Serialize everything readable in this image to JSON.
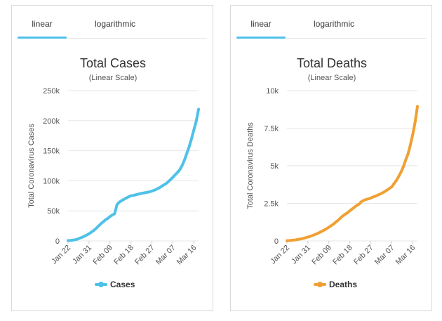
{
  "tabs": [
    {
      "label": "linear",
      "active": true
    },
    {
      "label": "logarithmic",
      "active": false
    }
  ],
  "colors": {
    "cases": "#4fc1e9",
    "deaths": "#f0a033",
    "tab_underline": "#4fc1e9"
  },
  "chart_data": [
    {
      "type": "line",
      "title": "Total Cases",
      "subtitle": "(Linear Scale)",
      "xlabel": "",
      "ylabel": "Total Coronavirus Cases",
      "ylim": [
        0,
        250000
      ],
      "yticks": [
        {
          "label": "0",
          "v": 0
        },
        {
          "label": "50k",
          "v": 50000
        },
        {
          "label": "100k",
          "v": 100000
        },
        {
          "label": "150k",
          "v": 150000
        },
        {
          "label": "200k",
          "v": 200000
        },
        {
          "label": "250k",
          "v": 250000
        }
      ],
      "xticks": [
        {
          "label": "Jan 22",
          "i": 0
        },
        {
          "label": "Jan 31",
          "i": 9
        },
        {
          "label": "Feb 09",
          "i": 18
        },
        {
          "label": "Feb 18",
          "i": 27
        },
        {
          "label": "Feb 27",
          "i": 36
        },
        {
          "label": "Mar 07",
          "i": 45
        },
        {
          "label": "Mar 16",
          "i": 54
        }
      ],
      "series": [
        {
          "name": "Cases",
          "values": [
            580,
            845,
            1320,
            2010,
            2800,
            4580,
            6060,
            7810,
            9820,
            11950,
            14550,
            17380,
            20620,
            24550,
            28280,
            31440,
            34880,
            37550,
            40550,
            43100,
            45170,
            60370,
            64450,
            67100,
            69200,
            71330,
            73330,
            75200,
            75700,
            76700,
            77700,
            78600,
            79400,
            80100,
            80800,
            81700,
            82900,
            84300,
            86000,
            88000,
            90400,
            93000,
            95300,
            98400,
            102000,
            106000,
            110000,
            114000,
            118600,
            125900,
            135000,
            146000,
            157000,
            170000,
            185000,
            199000,
            219000
          ]
        }
      ]
    },
    {
      "type": "line",
      "title": "Total Deaths",
      "subtitle": "(Linear Scale)",
      "xlabel": "",
      "ylabel": "Total Coronavirus Deaths",
      "ylim": [
        0,
        10000
      ],
      "yticks": [
        {
          "label": "0",
          "v": 0
        },
        {
          "label": "2.5k",
          "v": 2500
        },
        {
          "label": "5k",
          "v": 5000
        },
        {
          "label": "7.5k",
          "v": 7500
        },
        {
          "label": "10k",
          "v": 10000
        }
      ],
      "xticks": [
        {
          "label": "Jan 22",
          "i": 0
        },
        {
          "label": "Jan 31",
          "i": 9
        },
        {
          "label": "Feb 09",
          "i": 18
        },
        {
          "label": "Feb 18",
          "i": 27
        },
        {
          "label": "Feb 27",
          "i": 36
        },
        {
          "label": "Mar 07",
          "i": 45
        },
        {
          "label": "Mar 16",
          "i": 54
        }
      ],
      "series": [
        {
          "name": "Deaths",
          "values": [
            17,
            25,
            41,
            56,
            80,
            106,
            132,
            170,
            213,
            259,
            304,
            362,
            426,
            492,
            565,
            638,
            724,
            813,
            910,
            1018,
            1115,
            1261,
            1383,
            1526,
            1669,
            1775,
            1873,
            2009,
            2126,
            2247,
            2360,
            2460,
            2618,
            2699,
            2763,
            2800,
            2858,
            2923,
            2977,
            3050,
            3117,
            3202,
            3285,
            3387,
            3494,
            3599,
            3827,
            4033,
            4300,
            4600,
            4960,
            5400,
            5800,
            6400,
            7100,
            7900,
            8950
          ]
        }
      ]
    }
  ]
}
